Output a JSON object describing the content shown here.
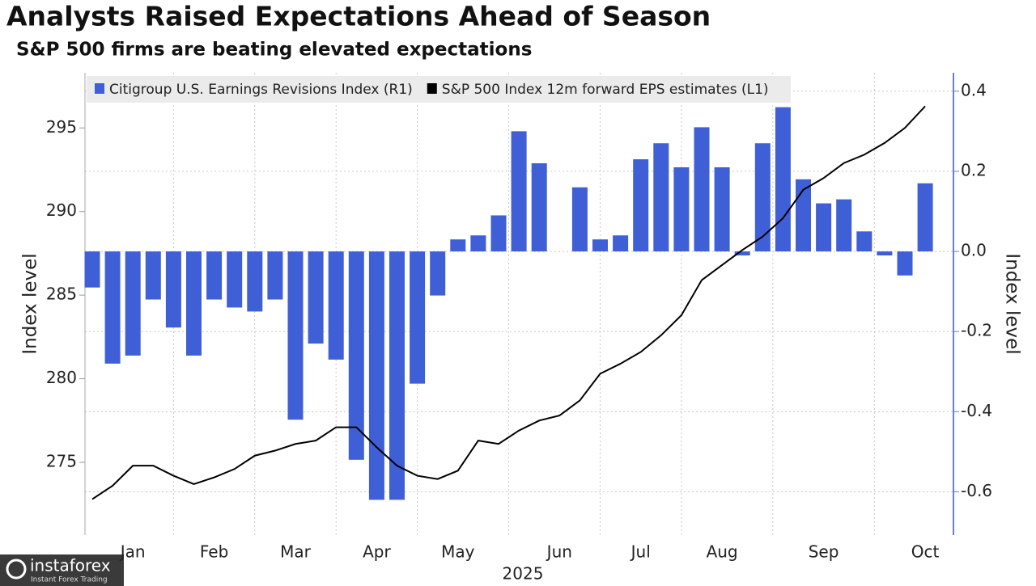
{
  "chart_data": {
    "type": "bar-line",
    "title": "Analysts Raised Expectations Ahead of Season",
    "subtitle": "S&P 500 firms are beating elevated expectations",
    "ylabel": "Index level",
    "y2label": "Index level",
    "xlabel": "2025",
    "categories": [
      null,
      null,
      "Jan",
      null,
      null,
      null,
      "Feb",
      null,
      null,
      null,
      "Mar",
      null,
      null,
      null,
      "Apr",
      null,
      null,
      null,
      "May",
      null,
      null,
      null,
      null,
      "Jun",
      null,
      null,
      null,
      "Jul",
      null,
      null,
      null,
      "Aug",
      null,
      null,
      null,
      null,
      "Sep",
      null,
      null,
      null,
      null,
      "Oct"
    ],
    "series": [
      {
        "name": "Citigroup U.S. Earnings Revisions Index (R1)",
        "color": "#3f5fd6",
        "axis": "y2",
        "kind": "bar",
        "values": [
          -0.09,
          -0.28,
          -0.26,
          -0.12,
          -0.19,
          -0.26,
          -0.12,
          -0.14,
          -0.15,
          -0.12,
          -0.42,
          -0.23,
          -0.27,
          -0.52,
          -0.62,
          -0.62,
          -0.33,
          -0.11,
          0.03,
          0.04,
          0.09,
          0.3,
          0.22,
          null,
          0.16,
          0.03,
          0.04,
          0.23,
          0.27,
          0.21,
          0.31,
          0.21,
          -0.01,
          0.27,
          0.36,
          0.18,
          0.12,
          0.13,
          0.05,
          -0.01,
          -0.06,
          0.17
        ]
      },
      {
        "name": "S&P 500 Index 12m forward EPS estimates (L1)",
        "color": "#000000",
        "kind": "line",
        "values": [
          272.8,
          273.6,
          274.8,
          274.8,
          274.2,
          273.7,
          274.1,
          274.6,
          275.4,
          275.7,
          276.1,
          276.3,
          277.1,
          277.1,
          275.9,
          274.8,
          274.2,
          274.0,
          274.5,
          276.3,
          276.1,
          276.9,
          277.5,
          277.8,
          278.7,
          280.3,
          280.9,
          281.6,
          282.6,
          283.8,
          285.9,
          286.8,
          287.7,
          288.5,
          289.6,
          291.3,
          292.0,
          292.9,
          293.4,
          294.1,
          295.0,
          296.3
        ]
      }
    ],
    "ylim": [
      270.65,
      298.3
    ],
    "yticks": [
      275,
      280,
      285,
      290,
      295
    ],
    "y2lim": [
      -0.708,
      0.446
    ],
    "y2ticks": [
      -0.6,
      -0.4,
      -0.2,
      {
        "value": 0,
        "label": "0.0"
      },
      0.2,
      0.4
    ],
    "grid": true,
    "legend": "top-left"
  },
  "watermark": {
    "brand": "instaforex",
    "tagline": "Instant Forex Trading"
  }
}
